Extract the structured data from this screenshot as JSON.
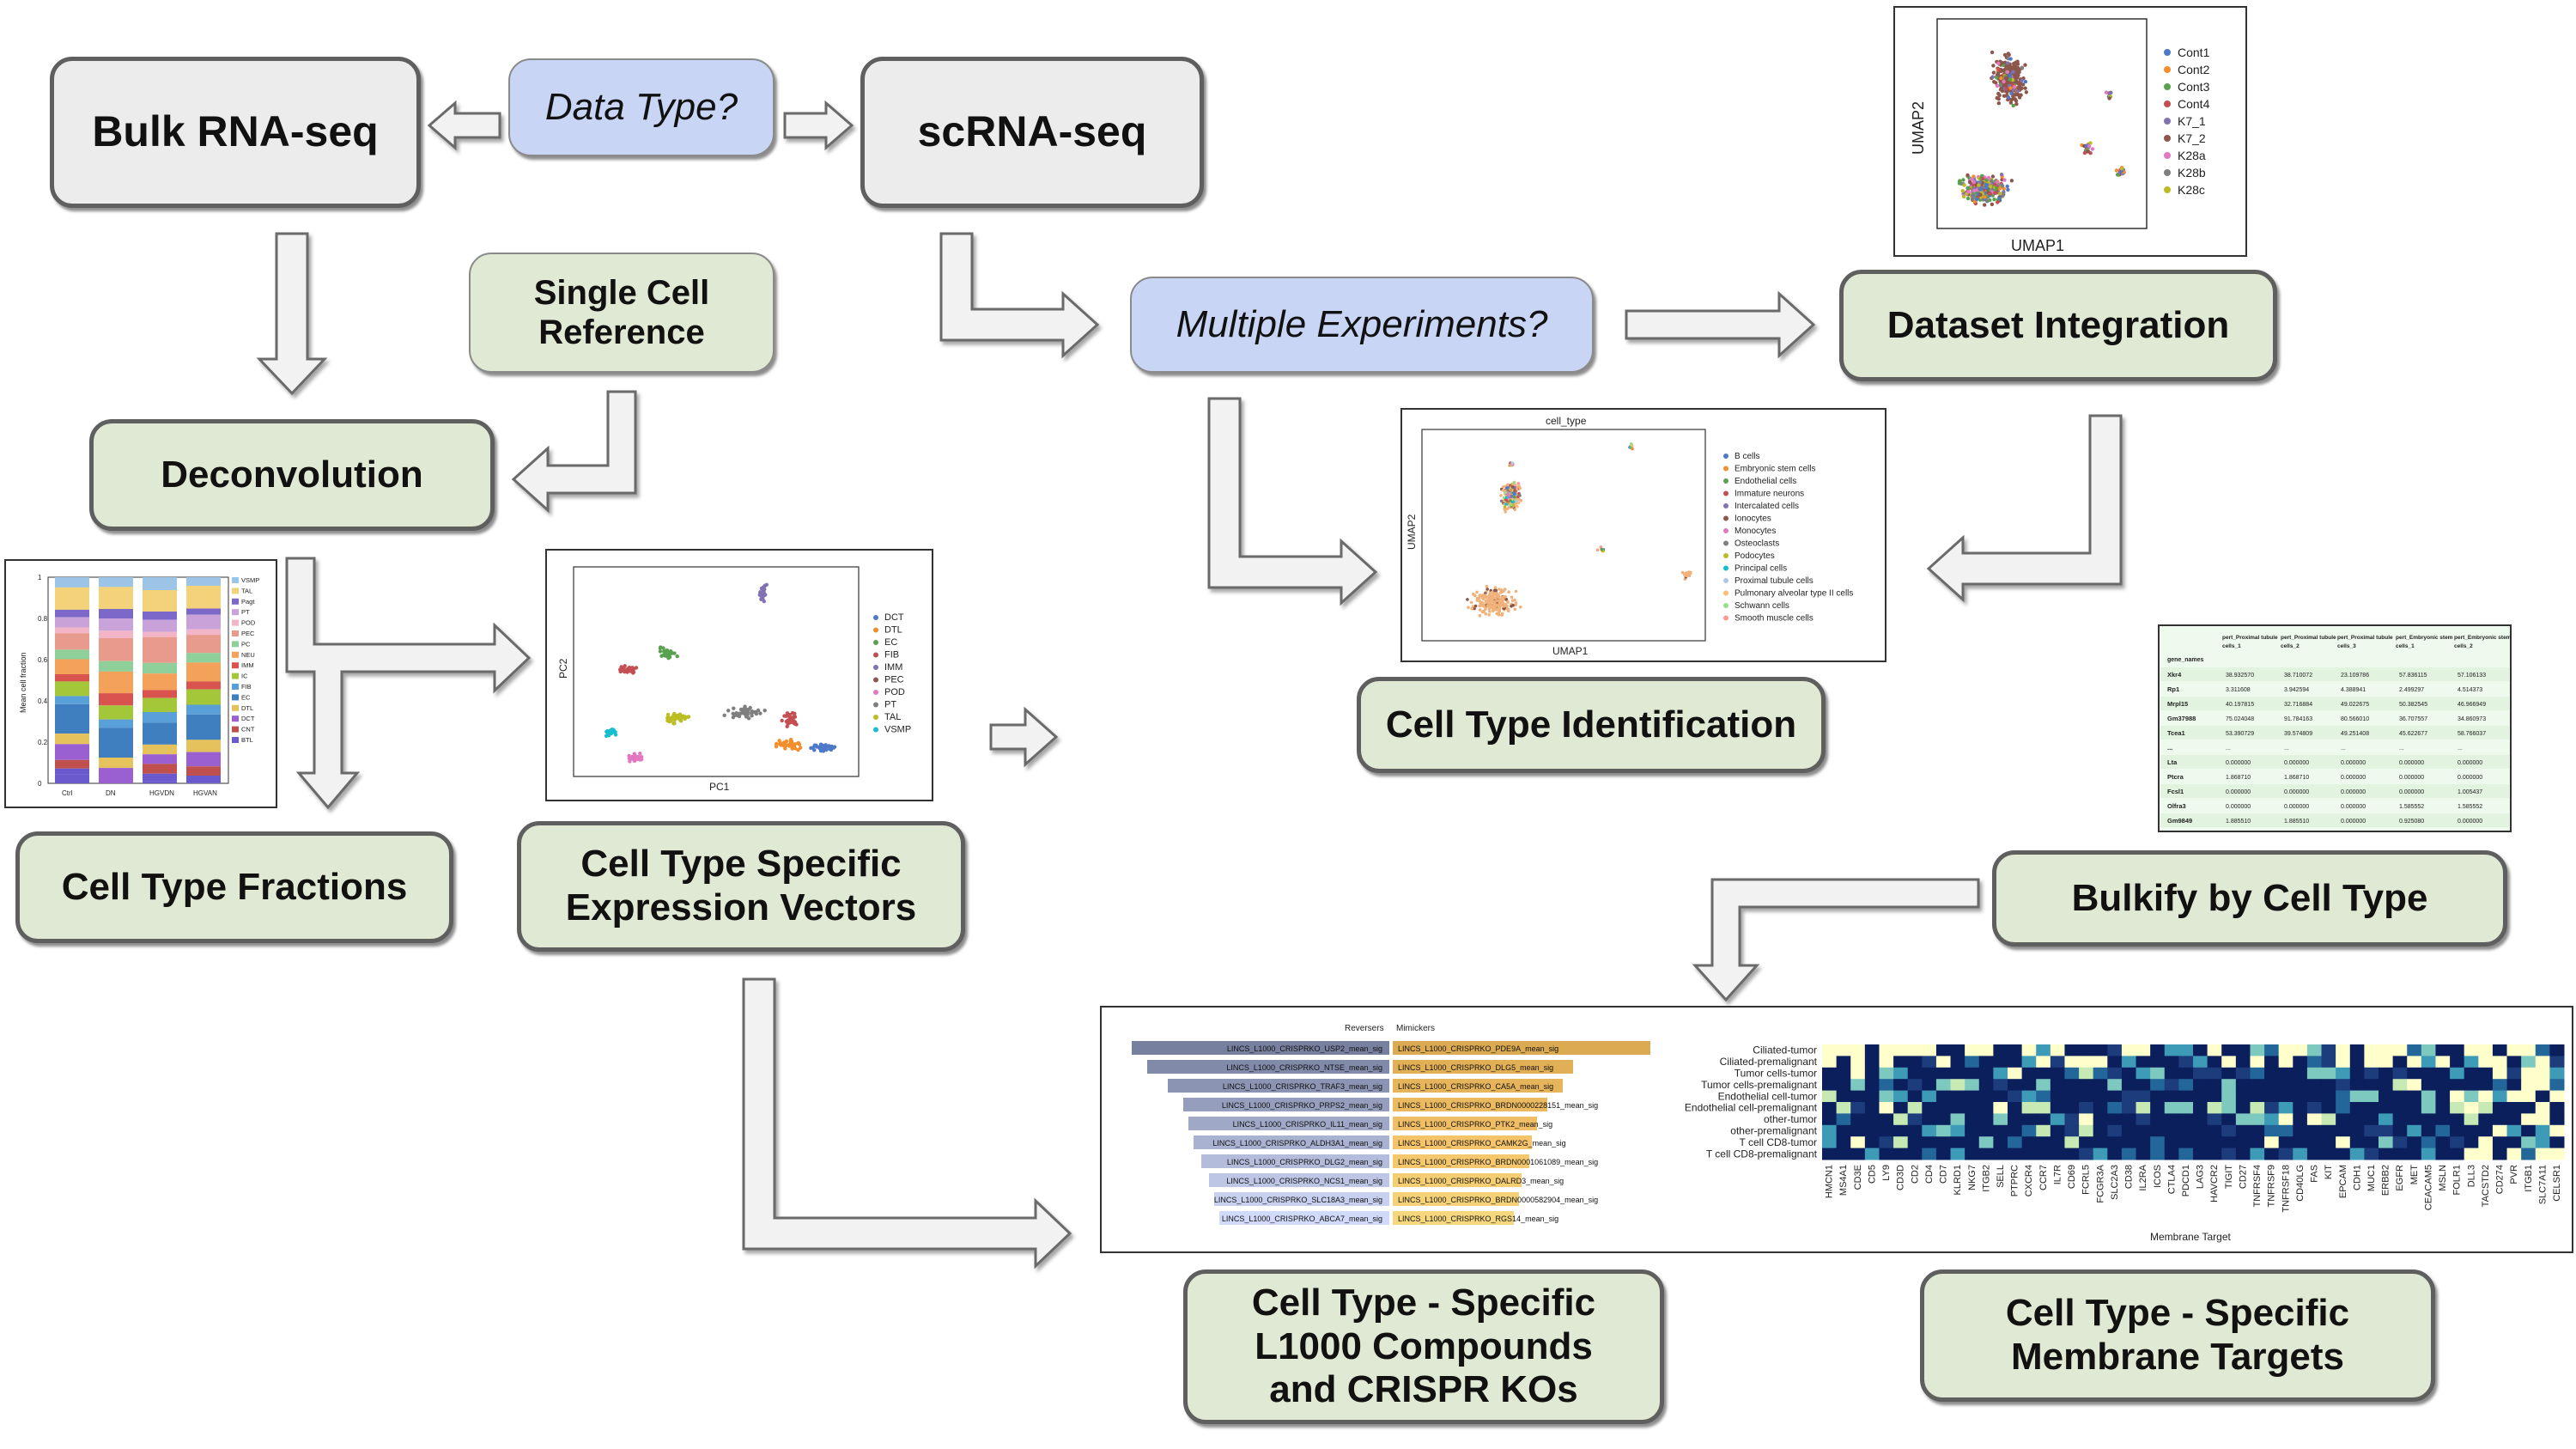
{
  "boxes": {
    "bulk_rnaseq": "Bulk RNA-seq",
    "data_type": "Data Type?",
    "scrnaseq": "scRNA-seq",
    "single_cell_ref_line1": "Single Cell",
    "single_cell_ref_line2": "Reference",
    "deconvolution": "Deconvolution",
    "multiple_experiments": "Multiple Experiments?",
    "dataset_integration": "Dataset Integration",
    "cell_type_fractions": "Cell Type Fractions",
    "ct_vectors_line1": "Cell Type Specific",
    "ct_vectors_line2": "Expression Vectors",
    "cell_type_identification": "Cell Type Identification",
    "bulkify": "Bulkify by Cell Type",
    "l1000_line1": "Cell Type - Specific",
    "l1000_line2": "L1000 Compounds",
    "l1000_line3": "and CRISPR KOs",
    "membrane_line1": "Cell Type - Specific",
    "membrane_line2": "Membrane Targets"
  },
  "umap_integration": {
    "xlabel": "UMAP1",
    "ylabel": "UMAP2",
    "legend": [
      "Cont1",
      "Cont2",
      "Cont3",
      "Cont4",
      "K7_1",
      "K7_2",
      "K28a",
      "K28b",
      "K28c"
    ],
    "colors": [
      "#4e79c9",
      "#f28e2b",
      "#59a14f",
      "#c44e52",
      "#8172b3",
      "#8c564b",
      "#e377c2",
      "#7f7f7f",
      "#bcbd22"
    ]
  },
  "umap_celltype": {
    "title": "cell_type",
    "xlabel": "UMAP1",
    "ylabel": "UMAP2",
    "legend": [
      "B cells",
      "Embryonic stem cells",
      "Endothelial cells",
      "Immature neurons",
      "Intercalated cells",
      "Ionocytes",
      "Monocytes",
      "Osteoclasts",
      "Podocytes",
      "Principal cells",
      "Proximal tubule cells",
      "Pulmonary alveolar type II cells",
      "Schwann cells",
      "Smooth muscle cells"
    ],
    "colors": [
      "#4e79c9",
      "#f28e2b",
      "#59a14f",
      "#c44e52",
      "#8172b3",
      "#8c564b",
      "#e377c2",
      "#7f7f7f",
      "#bcbd22",
      "#17becf",
      "#aec7e8",
      "#ffbb78",
      "#98df8a",
      "#ff9896"
    ]
  },
  "pca": {
    "xlabel": "PC1",
    "ylabel": "PC2",
    "legend": [
      "DCT",
      "DTL",
      "EC",
      "FIB",
      "IMM",
      "PEC",
      "POD",
      "PT",
      "TAL",
      "VSMP"
    ],
    "colors": [
      "#4e79c9",
      "#f28e2b",
      "#59a14f",
      "#c44e52",
      "#8172b3",
      "#8c564b",
      "#e377c2",
      "#7f7f7f",
      "#bcbd22",
      "#17becf"
    ]
  },
  "fractions_chart": {
    "ylabel": "Mean cell fraction",
    "categories": [
      "Ctrl",
      "DN",
      "HGVDN",
      "HGVAN"
    ],
    "legend": [
      "VSMP",
      "TAL",
      "Pagt",
      "PT",
      "POD",
      "PEC",
      "PC",
      "NEU",
      "IMM",
      "IC",
      "FIB",
      "EC",
      "DTL",
      "DCT",
      "CNT",
      "BTL"
    ],
    "colors": [
      "#9bc4e6",
      "#f4d27a",
      "#7b68c8",
      "#c8a2d8",
      "#f2b5c8",
      "#e89b8c",
      "#8fcf9a",
      "#f4a15a",
      "#d9534f",
      "#a4c639",
      "#5aa0d8",
      "#3f7fbf",
      "#e6c25c",
      "#9a5fd0",
      "#c0504d",
      "#6a5acd"
    ],
    "yticks": [
      "1",
      "0.8",
      "0.6",
      "0.4",
      "0.2",
      "0"
    ]
  },
  "table": {
    "index_header": "gene_names",
    "columns": [
      "pert_Proximal tubule cells_1",
      "pert_Proximal tubule cells_2",
      "pert_Proximal tubule cells_3",
      "pert_Embryonic stem cells_1",
      "pert_Embryonic stem cells_2"
    ],
    "rows": [
      {
        "gene": "Xkr4",
        "values": [
          "38.932570",
          "38.710072",
          "23.109786",
          "57.836115",
          "57.106133"
        ]
      },
      {
        "gene": "Rp1",
        "values": [
          "3.311608",
          "3.942594",
          "4.388941",
          "2.499297",
          "4.514373"
        ]
      },
      {
        "gene": "Mrpl15",
        "values": [
          "40.197815",
          "32.716884",
          "49.022675",
          "50.382545",
          "46.966949"
        ]
      },
      {
        "gene": "Gm37988",
        "values": [
          "75.024048",
          "91.784163",
          "80.566010",
          "36.707557",
          "34.860973"
        ]
      },
      {
        "gene": "Tcea1",
        "values": [
          "53.390729",
          "39.574809",
          "49.251408",
          "45.622677",
          "58.766037"
        ]
      },
      {
        "gene": "...",
        "values": [
          "...",
          "...",
          "...",
          "...",
          "..."
        ]
      },
      {
        "gene": "Lta",
        "values": [
          "0.000000",
          "0.000000",
          "0.000000",
          "0.000000",
          "0.000000"
        ]
      },
      {
        "gene": "Ptcra",
        "values": [
          "1.868710",
          "1.868710",
          "0.000000",
          "0.000000",
          "0.000000"
        ]
      },
      {
        "gene": "Fcsl1",
        "values": [
          "0.000000",
          "0.000000",
          "0.000000",
          "0.000000",
          "1.005437"
        ]
      },
      {
        "gene": "Olfra3",
        "values": [
          "0.000000",
          "0.000000",
          "0.000000",
          "1.585552",
          "1.585552"
        ]
      },
      {
        "gene": "Gm9849",
        "values": [
          "1.885510",
          "1.885510",
          "0.000000",
          "0.925080",
          "0.000000"
        ]
      }
    ]
  },
  "l1000_chart": {
    "reversers_title": "Reversers",
    "mimickers_title": "Mimickers",
    "reversers": [
      {
        "label": "LINCS_L1000_CRISPRKO_USP2_mean_sig",
        "value": 1.0
      },
      {
        "label": "LINCS_L1000_CRISPRKO_NTSE_mean_sig",
        "value": 0.94
      },
      {
        "label": "LINCS_L1000_CRISPRKO_TRAF3_mean_sig",
        "value": 0.86
      },
      {
        "label": "LINCS_L1000_CRISPRKO_PRPS2_mean_sig",
        "value": 0.8
      },
      {
        "label": "LINCS_L1000_CRISPRKO_IL11_mean_sig",
        "value": 0.78
      },
      {
        "label": "LINCS_L1000_CRISPRKO_ALDH3A1_mean_sig",
        "value": 0.76
      },
      {
        "label": "LINCS_L1000_CRISPRKO_DLG2_mean_sig",
        "value": 0.73
      },
      {
        "label": "LINCS_L1000_CRISPRKO_NCS1_mean_sig",
        "value": 0.7
      },
      {
        "label": "LINCS_L1000_CRISPRKO_SLC18A3_mean_sig",
        "value": 0.68
      },
      {
        "label": "LINCS_L1000_CRISPRKO_ABCA7_mean_sig",
        "value": 0.66
      }
    ],
    "mimickers": [
      {
        "label": "LINCS_L1000_CRISPRKO_PDE9A_mean_sig",
        "value": 1.0
      },
      {
        "label": "LINCS_L1000_CRISPRKO_DLG5_mean_sig",
        "value": 0.7
      },
      {
        "label": "LINCS_L1000_CRISPRKO_CA5A_mean_sig",
        "value": 0.66
      },
      {
        "label": "LINCS_L1000_CRISPRKO_BRDN0000228151_mean_sig",
        "value": 0.6
      },
      {
        "label": "LINCS_L1000_CRISPRKO_PTK2_mean_sig",
        "value": 0.56
      },
      {
        "label": "LINCS_L1000_CRISPRKO_CAMK2G_mean_sig",
        "value": 0.54
      },
      {
        "label": "LINCS_L1000_CRISPRKO_BRDN0001061089_mean_sig",
        "value": 0.53
      },
      {
        "label": "LINCS_L1000_CRISPRKO_DALRD3_mean_sig",
        "value": 0.5
      },
      {
        "label": "LINCS_L1000_CRISPRKO_BRDN0000582904_mean_sig",
        "value": 0.49
      },
      {
        "label": "LINCS_L1000_CRISPRKO_RGS14_mean_sig",
        "value": 0.47
      }
    ]
  },
  "heatmap": {
    "xlabel": "Membrane Target",
    "rows": [
      "Ciliated-tumor",
      "Ciliated-premalignant",
      "Tumor cells-tumor",
      "Tumor cells-premalignant",
      "Endothelial cell-tumor",
      "Endothelial cell-premalignant",
      "other-tumor",
      "other-premalignant",
      "T cell CD8-tumor",
      "T cell CD8-premalignant"
    ],
    "columns": [
      "HMCN1",
      "MS4A1",
      "CD3E",
      "CD5",
      "LY9",
      "CD3D",
      "CD2",
      "CD4",
      "CD7",
      "KLRD1",
      "NKG7",
      "ITGB2",
      "SELL",
      "PTPRC",
      "CXCR4",
      "CCR7",
      "IL7R",
      "CD69",
      "FCRL5",
      "FCGR3A",
      "SLC2A3",
      "CD38",
      "IL2RA",
      "ICOS",
      "CTLA4",
      "PDCD1",
      "LAG3",
      "HAVCR2",
      "TIGIT",
      "CD27",
      "TNFRSF4",
      "TNFRSF9",
      "TNFRSF18",
      "CD40LG",
      "FAS",
      "KIT",
      "EPCAM",
      "CDH1",
      "MUC1",
      "ERBB2",
      "EGFR",
      "MET",
      "CEACAM5",
      "MSLN",
      "FOLR1",
      "DLL3",
      "TACSTD2",
      "CD274",
      "PVR",
      "ITGB1",
      "SLC7A11",
      "CELSR1"
    ],
    "colors": [
      "#0b1f5c",
      "#1d3c7c",
      "#23679a",
      "#3e9bb8",
      "#7ec9bf",
      "#c7e9b4",
      "#ffffcc"
    ]
  }
}
